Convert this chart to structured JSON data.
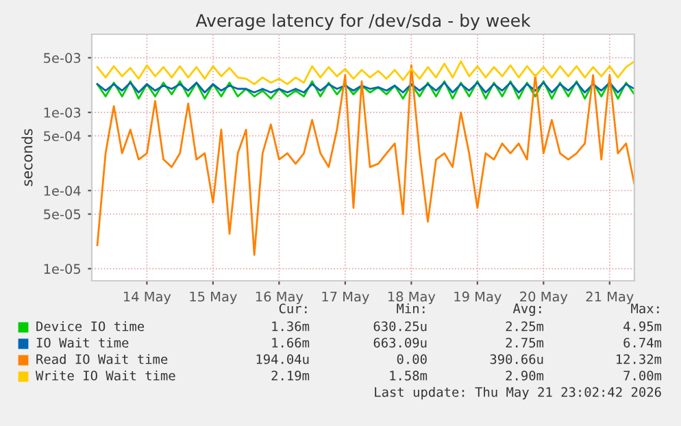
{
  "chart_data": {
    "type": "line",
    "title": "Average latency for /dev/sda - by week",
    "ylabel": "seconds",
    "log": true,
    "x": [
      "2026-05-13T18:00",
      "2026-05-13T21:00",
      "2026-05-14T00:00",
      "2026-05-14T03:00",
      "2026-05-14T06:00",
      "2026-05-14T09:00",
      "2026-05-14T12:00",
      "2026-05-14T15:00",
      "2026-05-14T18:00",
      "2026-05-14T21:00",
      "2026-05-15T00:00",
      "2026-05-15T03:00",
      "2026-05-15T06:00",
      "2026-05-15T09:00",
      "2026-05-15T12:00",
      "2026-05-15T15:00",
      "2026-05-15T18:00",
      "2026-05-15T21:00",
      "2026-05-16T00:00",
      "2026-05-16T03:00",
      "2026-05-16T06:00",
      "2026-05-16T09:00",
      "2026-05-16T12:00",
      "2026-05-16T15:00",
      "2026-05-16T18:00",
      "2026-05-16T21:00",
      "2026-05-17T00:00",
      "2026-05-17T03:00",
      "2026-05-17T06:00",
      "2026-05-17T09:00",
      "2026-05-17T12:00",
      "2026-05-17T15:00",
      "2026-05-17T18:00",
      "2026-05-17T21:00",
      "2026-05-18T00:00",
      "2026-05-18T03:00",
      "2026-05-18T06:00",
      "2026-05-18T09:00",
      "2026-05-18T12:00",
      "2026-05-18T15:00",
      "2026-05-18T18:00",
      "2026-05-18T21:00",
      "2026-05-19T00:00",
      "2026-05-19T03:00",
      "2026-05-19T06:00",
      "2026-05-19T09:00",
      "2026-05-19T12:00",
      "2026-05-19T15:00",
      "2026-05-19T18:00",
      "2026-05-19T21:00",
      "2026-05-20T00:00",
      "2026-05-20T03:00",
      "2026-05-20T06:00",
      "2026-05-20T09:00",
      "2026-05-20T12:00",
      "2026-05-20T15:00",
      "2026-05-20T18:00",
      "2026-05-20T21:00",
      "2026-05-21T00:00",
      "2026-05-21T03:00",
      "2026-05-21T06:00",
      "2026-05-21T09:00",
      "2026-05-21T12:00",
      "2026-05-21T15:00",
      "2026-05-21T18:00",
      "2026-05-21T21:00"
    ],
    "series": [
      {
        "name": "Device IO time",
        "color": "#00cc00",
        "values": [
          0.0023,
          0.0016,
          0.0024,
          0.0016,
          0.0025,
          0.0015,
          0.0023,
          0.0016,
          0.0024,
          0.0017,
          0.0025,
          0.0016,
          0.0024,
          0.0015,
          0.0023,
          0.0016,
          0.0024,
          0.0016,
          0.002,
          0.0016,
          0.0019,
          0.0015,
          0.002,
          0.0016,
          0.0019,
          0.0016,
          0.0025,
          0.0016,
          0.0024,
          0.0017,
          0.0023,
          0.0017,
          0.0022,
          0.0018,
          0.0021,
          0.0017,
          0.0022,
          0.0015,
          0.0023,
          0.0016,
          0.0024,
          0.0016,
          0.0025,
          0.0015,
          0.0024,
          0.0016,
          0.0025,
          0.0015,
          0.0024,
          0.0016,
          0.0025,
          0.0015,
          0.0024,
          0.0016,
          0.0025,
          0.0015,
          0.0024,
          0.0016,
          0.0025,
          0.0015,
          0.0024,
          0.0016,
          0.0025,
          0.0015,
          0.0024,
          0.0017
        ]
      },
      {
        "name": "IO Wait time",
        "color": "#0066b3",
        "values": [
          0.0023,
          0.0019,
          0.0023,
          0.0019,
          0.0024,
          0.0018,
          0.0023,
          0.0019,
          0.0022,
          0.002,
          0.0023,
          0.0019,
          0.0024,
          0.0018,
          0.0023,
          0.0019,
          0.0022,
          0.002,
          0.002,
          0.0018,
          0.002,
          0.0018,
          0.002,
          0.0018,
          0.002,
          0.0018,
          0.0023,
          0.0019,
          0.0023,
          0.002,
          0.0022,
          0.0019,
          0.0022,
          0.002,
          0.0021,
          0.0019,
          0.0022,
          0.0018,
          0.0023,
          0.0019,
          0.0023,
          0.0019,
          0.0024,
          0.0018,
          0.0023,
          0.0019,
          0.0024,
          0.0018,
          0.0023,
          0.0019,
          0.0024,
          0.0018,
          0.0023,
          0.0019,
          0.0024,
          0.0018,
          0.0023,
          0.0019,
          0.0024,
          0.0018,
          0.0023,
          0.0019,
          0.0024,
          0.0018,
          0.0023,
          0.002
        ]
      },
      {
        "name": "Read IO Wait time",
        "color": "#ff8000",
        "values": [
          2e-05,
          0.0003,
          0.0012,
          0.0003,
          0.0006,
          0.00025,
          0.0003,
          0.0014,
          0.00025,
          0.0002,
          0.0003,
          0.0013,
          0.00025,
          0.0003,
          7e-05,
          0.0006,
          2.8e-05,
          0.0003,
          0.0006,
          1.5e-05,
          0.0003,
          0.0007,
          0.00025,
          0.0003,
          0.00022,
          0.0003,
          0.0008,
          0.0003,
          0.0002,
          0.0006,
          0.003,
          6e-05,
          0.0025,
          0.0002,
          0.00022,
          0.0003,
          0.0004,
          5e-05,
          0.004,
          0.0003,
          4e-05,
          0.00025,
          0.0003,
          0.0002,
          0.001,
          0.0003,
          6e-05,
          0.0003,
          0.00025,
          0.0004,
          0.0003,
          0.0004,
          0.00025,
          0.003,
          0.0003,
          0.0008,
          0.0003,
          0.00025,
          0.0003,
          0.0004,
          0.003,
          0.00025,
          0.003,
          0.0003,
          0.0004,
          0.00012
        ]
      },
      {
        "name": "Write IO Wait time",
        "color": "#ffcc00",
        "values": [
          0.0038,
          0.0028,
          0.0039,
          0.0029,
          0.0037,
          0.0027,
          0.004,
          0.0029,
          0.0038,
          0.0028,
          0.0039,
          0.0028,
          0.0038,
          0.0027,
          0.0039,
          0.0029,
          0.0037,
          0.0028,
          0.0027,
          0.0023,
          0.0028,
          0.0024,
          0.0027,
          0.0023,
          0.0028,
          0.0024,
          0.0039,
          0.0028,
          0.0038,
          0.0029,
          0.0036,
          0.0027,
          0.0035,
          0.0028,
          0.0034,
          0.0027,
          0.0035,
          0.0026,
          0.0036,
          0.0027,
          0.0038,
          0.0028,
          0.0042,
          0.0028,
          0.0045,
          0.0029,
          0.0039,
          0.0028,
          0.0038,
          0.0029,
          0.004,
          0.0028,
          0.0039,
          0.0029,
          0.0038,
          0.0028,
          0.0039,
          0.0029,
          0.0039,
          0.0028,
          0.0038,
          0.0029,
          0.0039,
          0.0028,
          0.0038,
          0.0045
        ]
      }
    ],
    "xlim": [
      "2026-05-13T16:00",
      "2026-05-21T21:00"
    ],
    "xticks": [
      {
        "value": "2026-05-14T12:00",
        "label": "14 May"
      },
      {
        "value": "2026-05-15T12:00",
        "label": "15 May"
      },
      {
        "value": "2026-05-16T12:00",
        "label": "16 May"
      },
      {
        "value": "2026-05-17T12:00",
        "label": "17 May"
      },
      {
        "value": "2026-05-18T12:00",
        "label": "18 May"
      },
      {
        "value": "2026-05-19T12:00",
        "label": "19 May"
      },
      {
        "value": "2026-05-20T12:00",
        "label": "20 May"
      },
      {
        "value": "2026-05-21T12:00",
        "label": "21 May"
      }
    ],
    "ylim": [
      7e-06,
      0.01
    ],
    "yticks": [
      {
        "value": 1e-05,
        "label": "1e-05"
      },
      {
        "value": 5e-05,
        "label": "5e-05"
      },
      {
        "value": 0.0001,
        "label": "1e-04"
      },
      {
        "value": 0.0005,
        "label": "5e-04"
      },
      {
        "value": 0.001,
        "label": "1e-03"
      },
      {
        "value": 0.005,
        "label": "5e-03"
      }
    ],
    "grid": true,
    "legend": "bottom",
    "annotations": [
      "Cur:",
      "Min:",
      "Avg:",
      "Max:",
      "1.36m",
      "630.25u",
      "2.25m",
      "4.95m",
      "1.66m",
      "663.09u",
      "2.75m",
      "6.74m",
      "194.04u",
      "0.00",
      "390.66u",
      "12.32m",
      "2.19m",
      "1.58m",
      "2.90m",
      "7.00m",
      "Last update: Thu May 21 23:02:42 2026"
    ]
  }
}
